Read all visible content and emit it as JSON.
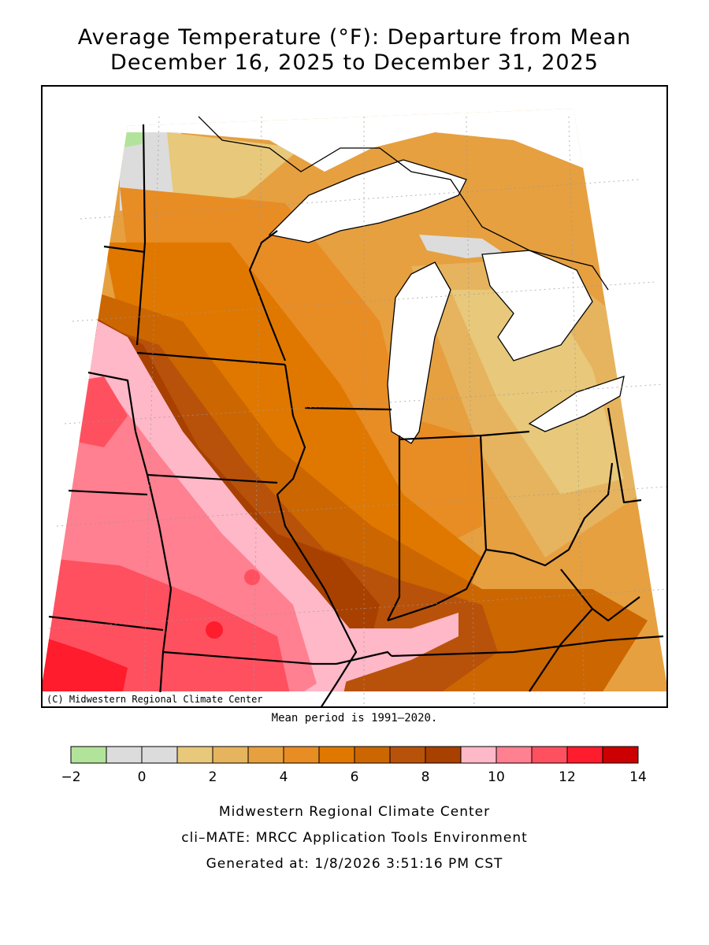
{
  "title": {
    "line1": "Average Temperature (°F): Departure from Mean",
    "line2": "December 16, 2025 to December 31, 2025"
  },
  "map": {
    "copyright": "(C) Midwestern Regional Climate Center",
    "mean_period": "Mean period is 1991–2020."
  },
  "legend": {
    "colors": [
      "#b2e39a",
      "#dcdcdc",
      "#dcdcdc",
      "#e8c87a",
      "#e6b45e",
      "#e6a040",
      "#e88c24",
      "#e07800",
      "#cc6600",
      "#b8520a",
      "#a84000",
      "#ffb8c8",
      "#ff8090",
      "#ff5060",
      "#ff1c2c",
      "#cc0000"
    ],
    "tick_labels": [
      "−2",
      "0",
      "2",
      "4",
      "6",
      "8",
      "10",
      "12",
      "14"
    ]
  },
  "footer": {
    "org": "Midwestern Regional Climate Center",
    "tool": "cli–MATE: MRCC Application Tools Environment",
    "generated": "Generated at: 1/8/2026 3:51:16 PM CST"
  }
}
